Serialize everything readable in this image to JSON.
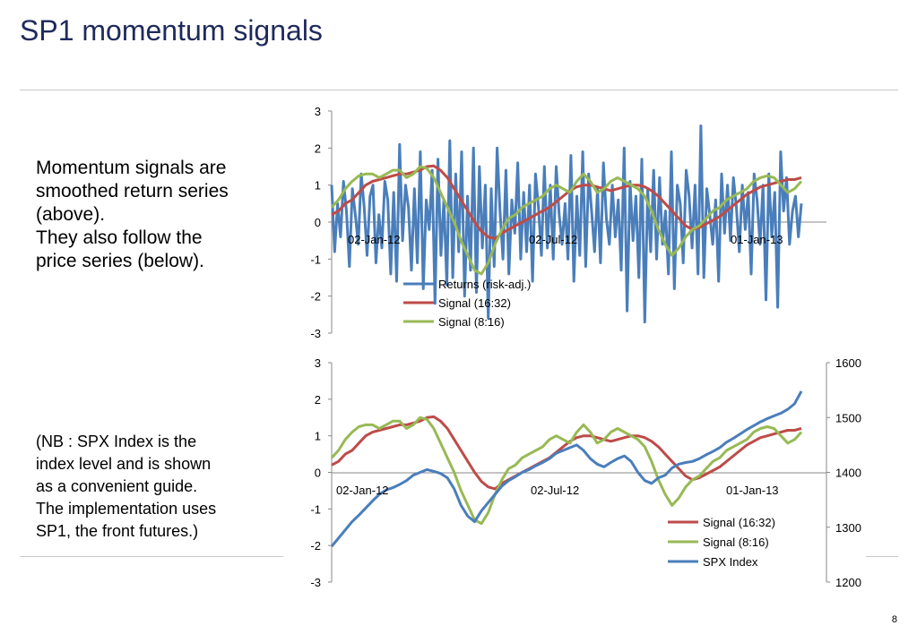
{
  "slide": {
    "title": "SP1 momentum signals",
    "page_number": "8",
    "text_top": [
      "Momentum signals are",
      "smoothed return series",
      "(above).",
      "They also follow the",
      "price series (below)."
    ],
    "text_bottom": [
      "(NB : SPX Index is the",
      "index level and is shown",
      "as a convenient guide.",
      "The implementation uses",
      "SP1, the front futures.)"
    ]
  },
  "colors": {
    "returns": "#4a7ebb",
    "signal_16_32": "#be4b48",
    "signal_8_16": "#98b954",
    "spx": "#4a7ebb",
    "title": "#1f2a5c"
  },
  "chart_data": [
    {
      "type": "line",
      "ylim": [
        -3,
        3
      ],
      "y_ticks": [
        "3",
        "2",
        "1",
        "0",
        "-1",
        "-2",
        "-3"
      ],
      "x_tick_labels": [
        "02-Jan-12",
        "02-Jul-12",
        "01-Jan-13"
      ],
      "legend_position": "bottom-center",
      "series": [
        {
          "name": "Returns (risk-adj.)",
          "values": [
            1.0,
            -0.8,
            0.5,
            -0.4,
            1.1,
            0.3,
            -1.2,
            0.9,
            0.2,
            -0.6,
            1.3,
            0.4,
            -0.9,
            0.7,
            1.0,
            -1.1,
            0.2,
            -0.7,
            1.1,
            0.6,
            -1.4,
            0.8,
            -1.6,
            2.1,
            -0.5,
            1.0,
            0.4,
            -1.3,
            0.9,
            -1.1,
            1.9,
            -1.8,
            0.6,
            -0.2,
            1.4,
            -2.2,
            1.7,
            -0.9,
            0.6,
            -1.7,
            2.2,
            -1.5,
            1.3,
            -0.8,
            1.9,
            -2.0,
            0.7,
            -1.3,
            2.0,
            -1.9,
            1.5,
            -0.7,
            1.0,
            -2.6,
            0.9,
            -1.2,
            2.0,
            0.3,
            -1.0,
            1.4,
            -1.4,
            0.6,
            -0.3,
            1.6,
            -1.0,
            0.8,
            -0.8,
            1.0,
            -1.6,
            1.3,
            0.4,
            -0.9,
            1.5,
            -0.7,
            1.0,
            -1.0,
            1.5,
            0.2,
            -0.6,
            0.5,
            -1.0,
            1.8,
            -1.6,
            0.7,
            -0.9,
            1.9,
            -1.2,
            1.3,
            0.3,
            -0.8,
            0.9,
            -1.1,
            1.6,
            0.1,
            -0.6,
            1.0,
            -0.4,
            0.6,
            -1.3,
            2.0,
            -2.4,
            1.1,
            -0.5,
            0.7,
            -1.5,
            1.7,
            -2.7,
            0.9,
            -0.8,
            1.4,
            -1.0,
            1.2,
            -0.6,
            0.3,
            -1.4,
            1.9,
            -1.8,
            1.0,
            0.5,
            -1.1,
            1.4,
            0.7,
            -0.7,
            1.0,
            -1.4,
            2.6,
            -1.5,
            0.9,
            0.2,
            -0.6,
            0.6,
            -1.6,
            1.3,
            -0.3,
            1.0,
            -0.5,
            1.2,
            0.4,
            -0.8,
            1.0,
            -0.2,
            0.8,
            -1.4,
            1.3,
            0.6,
            -0.6,
            1.0,
            -2.1,
            1.3,
            -0.4,
            0.8,
            -2.3,
            1.9,
            0.3,
            1.2,
            -0.6,
            0.3,
            0.7,
            -0.4,
            0.5
          ]
        },
        {
          "name": "Signal (16:32)",
          "values": [
            0.2,
            0.3,
            0.5,
            0.6,
            0.8,
            1.0,
            1.1,
            1.15,
            1.2,
            1.25,
            1.3,
            1.3,
            1.35,
            1.4,
            1.5,
            1.52,
            1.4,
            1.2,
            0.9,
            0.6,
            0.3,
            0.0,
            -0.25,
            -0.4,
            -0.45,
            -0.3,
            -0.2,
            -0.1,
            0.0,
            0.1,
            0.2,
            0.3,
            0.4,
            0.55,
            0.7,
            0.85,
            0.95,
            1.0,
            1.0,
            0.95,
            0.9,
            0.85,
            0.9,
            0.95,
            1.0,
            1.0,
            0.95,
            0.85,
            0.7,
            0.5,
            0.3,
            0.1,
            -0.1,
            -0.2,
            -0.15,
            -0.05,
            0.05,
            0.15,
            0.3,
            0.45,
            0.6,
            0.75,
            0.85,
            0.95,
            1.0,
            1.05,
            1.1,
            1.15,
            1.15,
            1.2
          ]
        },
        {
          "name": "Signal (8:16)",
          "values": [
            0.4,
            0.6,
            0.9,
            1.1,
            1.25,
            1.3,
            1.3,
            1.2,
            1.3,
            1.4,
            1.4,
            1.2,
            1.3,
            1.5,
            1.45,
            1.2,
            0.8,
            0.4,
            0.0,
            -0.5,
            -0.9,
            -1.3,
            -1.4,
            -1.1,
            -0.6,
            -0.2,
            0.1,
            0.2,
            0.4,
            0.5,
            0.6,
            0.7,
            0.9,
            1.0,
            0.9,
            0.8,
            1.1,
            1.3,
            1.1,
            0.8,
            0.9,
            1.1,
            1.2,
            1.1,
            1.0,
            0.9,
            0.7,
            0.3,
            -0.2,
            -0.6,
            -0.9,
            -0.7,
            -0.4,
            -0.2,
            -0.1,
            0.1,
            0.3,
            0.4,
            0.6,
            0.7,
            0.8,
            0.9,
            1.1,
            1.2,
            1.25,
            1.2,
            1.0,
            0.8,
            0.9,
            1.1
          ]
        }
      ]
    },
    {
      "type": "line",
      "ylim": [
        -3,
        3
      ],
      "y2lim": [
        1200,
        1600
      ],
      "y_ticks": [
        "3",
        "2",
        "1",
        "0",
        "-1",
        "-2",
        "-3"
      ],
      "y2_ticks": [
        "1600",
        "1500",
        "1400",
        "1300",
        "1200"
      ],
      "x_tick_labels": [
        "02-Jan-12",
        "02-Jul-12",
        "01-Jan-13"
      ],
      "legend_position": "bottom-right",
      "series": [
        {
          "name": "Signal (16:32)",
          "axis": "left",
          "values": [
            0.2,
            0.3,
            0.5,
            0.6,
            0.8,
            1.0,
            1.1,
            1.15,
            1.2,
            1.25,
            1.3,
            1.3,
            1.35,
            1.4,
            1.5,
            1.52,
            1.4,
            1.2,
            0.9,
            0.6,
            0.3,
            0.0,
            -0.25,
            -0.4,
            -0.45,
            -0.3,
            -0.2,
            -0.1,
            0.0,
            0.1,
            0.2,
            0.3,
            0.4,
            0.55,
            0.7,
            0.85,
            0.95,
            1.0,
            1.0,
            0.95,
            0.9,
            0.85,
            0.9,
            0.95,
            1.0,
            1.0,
            0.95,
            0.85,
            0.7,
            0.5,
            0.3,
            0.1,
            -0.1,
            -0.2,
            -0.15,
            -0.05,
            0.05,
            0.15,
            0.3,
            0.45,
            0.6,
            0.75,
            0.85,
            0.95,
            1.0,
            1.05,
            1.1,
            1.15,
            1.15,
            1.2
          ]
        },
        {
          "name": "Signal (8:16)",
          "axis": "left",
          "values": [
            0.4,
            0.6,
            0.9,
            1.1,
            1.25,
            1.3,
            1.3,
            1.2,
            1.3,
            1.4,
            1.4,
            1.2,
            1.3,
            1.5,
            1.45,
            1.2,
            0.8,
            0.4,
            0.0,
            -0.5,
            -0.9,
            -1.3,
            -1.4,
            -1.1,
            -0.6,
            -0.2,
            0.1,
            0.2,
            0.4,
            0.5,
            0.6,
            0.7,
            0.9,
            1.0,
            0.9,
            0.8,
            1.1,
            1.3,
            1.1,
            0.8,
            0.9,
            1.1,
            1.2,
            1.1,
            1.0,
            0.9,
            0.7,
            0.3,
            -0.2,
            -0.6,
            -0.9,
            -0.7,
            -0.4,
            -0.2,
            -0.1,
            0.1,
            0.3,
            0.4,
            0.6,
            0.7,
            0.8,
            0.9,
            1.1,
            1.2,
            1.25,
            1.2,
            1.0,
            0.8,
            0.9,
            1.1
          ]
        },
        {
          "name": "SPX Index",
          "axis": "right",
          "values": [
            1265,
            1280,
            1295,
            1310,
            1322,
            1335,
            1348,
            1360,
            1368,
            1372,
            1378,
            1385,
            1395,
            1400,
            1405,
            1402,
            1398,
            1390,
            1370,
            1340,
            1320,
            1310,
            1330,
            1345,
            1360,
            1375,
            1385,
            1392,
            1400,
            1405,
            1412,
            1418,
            1425,
            1435,
            1440,
            1445,
            1450,
            1440,
            1425,
            1415,
            1410,
            1418,
            1425,
            1430,
            1420,
            1400,
            1385,
            1380,
            1390,
            1395,
            1408,
            1415,
            1418,
            1420,
            1425,
            1432,
            1438,
            1445,
            1455,
            1462,
            1470,
            1478,
            1485,
            1492,
            1498,
            1503,
            1508,
            1515,
            1525,
            1548
          ]
        }
      ]
    }
  ]
}
